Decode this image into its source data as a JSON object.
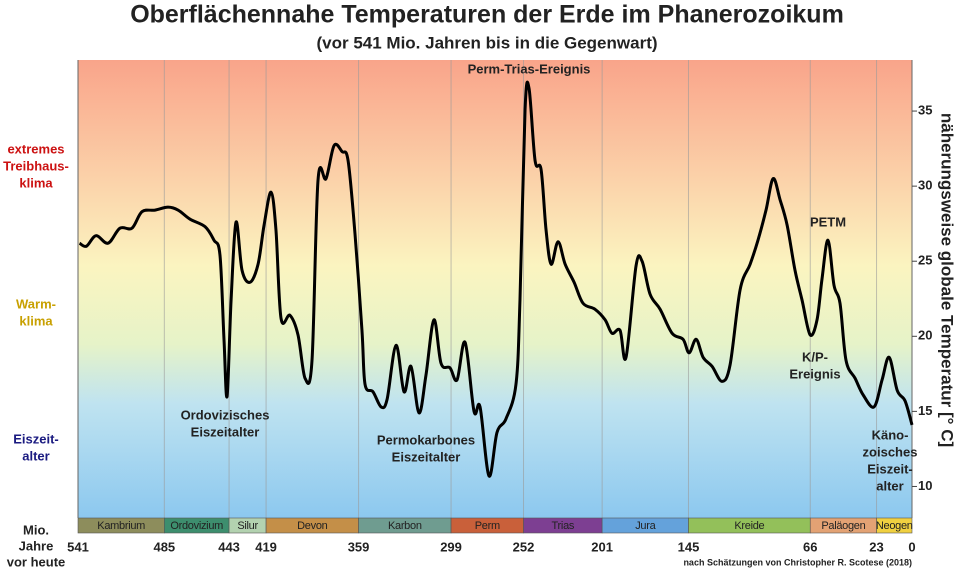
{
  "chart_data": {
    "type": "line",
    "title": "Oberflächennahe Temperaturen der Erde im Phanerozoikum",
    "subtitle": "(vor 541 Mio. Jahren bis in die Gegenwart)",
    "y_label": "näherungsweise  globale  Temperatur [° C]",
    "x_label": [
      "Mio.",
      "Jahre",
      "vor heute"
    ],
    "source": "nach Schätzungen von Christopher R. Scotese (2018)",
    "xlim": [
      541,
      0
    ],
    "ylim": [
      7.9,
      38.4
    ],
    "xticks": [
      541,
      485,
      443,
      419,
      359,
      299,
      252,
      201,
      145,
      66,
      23,
      0
    ],
    "yticks": [
      10,
      15,
      20,
      25,
      30,
      35
    ],
    "grid": true,
    "periods": [
      {
        "name": "Kambrium",
        "color": "#8d8d5c"
      },
      {
        "name": "Ordovizium",
        "color": "#3d8e6e"
      },
      {
        "name": "Silur",
        "color": "#b3d2b0"
      },
      {
        "name": "Devon",
        "color": "#c48f48"
      },
      {
        "name": "Karbon",
        "color": "#6f9c90"
      },
      {
        "name": "Perm",
        "color": "#c9603a"
      },
      {
        "name": "Trias",
        "color": "#7d3f92"
      },
      {
        "name": "Jura",
        "color": "#64a2db"
      },
      {
        "name": "Kreide",
        "color": "#93c05a"
      },
      {
        "name": "Paläogen",
        "color": "#e3a274"
      },
      {
        "name": "Neogen",
        "color": "#f0d040"
      }
    ],
    "climate_zones": [
      {
        "lines": [
          "extremes",
          "Treibhaus-",
          "klima"
        ],
        "color": "#cc1111"
      },
      {
        "lines": [
          "Warm-",
          "klima"
        ],
        "color": "#c8a000"
      },
      {
        "lines": [
          "Eiszeit-",
          "alter"
        ],
        "color": "#1a1a80"
      }
    ],
    "annotations": [
      [
        "Perm-Trias-Ereignis"
      ],
      [
        "Ordovizisches",
        "Eiszeitalter"
      ],
      [
        "Permokarbones",
        "Eiszeitalter"
      ],
      [
        "PETM"
      ],
      [
        "K/P-",
        "Ereignis"
      ],
      [
        "Käno-",
        "zoisches",
        "Eiszeit-",
        "alter"
      ]
    ],
    "series": [
      {
        "color": "#000000",
        "x": [
          540,
          535.5,
          529.3,
          521.5,
          513.8,
          506,
          499.5,
          491,
          482.6,
          476,
          468.3,
          458.6,
          452.8,
          448.9,
          446.3,
          444.3,
          441.7,
          438.5,
          434.6,
          429.4,
          424.2,
          420.3,
          415.8,
          412.6,
          409.3,
          403.5,
          398.3,
          393.7,
          389.2,
          385.3,
          380.1,
          374.9,
          369.7,
          365.8,
          361.3,
          356.8,
          354.8,
          349.6,
          344.4,
          340.5,
          334.7,
          329.5,
          325,
          319.8,
          315.3,
          310.1,
          305.5,
          299.7,
          295.1,
          289.9,
          284.1,
          280.2,
          274.4,
          269.2,
          263.4,
          256.9,
          254.3,
          251,
          248.4,
          244.5,
          240.6,
          237.4,
          234.1,
          229.6,
          225,
          219.2,
          213.4,
          205.6,
          199.1,
          194.6,
          189.4,
          185.5,
          179,
          175.1,
          169.9,
          163.4,
          155.6,
          148.5,
          144.6,
          140,
          135.5,
          129.7,
          123.2,
          118,
          111.5,
          105,
          99.9,
          94.7,
          90.1,
          85.6,
          81,
          75.9,
          71.3,
          66.1,
          61.6,
          58.4,
          54.5,
          50.6,
          46.7,
          42.8,
          36.9,
          31.7,
          24.6,
          19.4,
          14.8,
          9.6,
          4.5,
          0
        ],
        "values": [
          26.2,
          26.0,
          26.7,
          26.2,
          27.2,
          27.2,
          28.3,
          28.4,
          28.6,
          28.4,
          27.8,
          27.3,
          26.4,
          25.4,
          19.8,
          16.0,
          22.4,
          27.6,
          24.4,
          23.6,
          24.8,
          27.4,
          29.6,
          27.1,
          21.2,
          21.4,
          20.1,
          17.2,
          18.4,
          30.4,
          30.5,
          32.7,
          32.3,
          31.7,
          26.8,
          20.4,
          16.8,
          16.3,
          15.3,
          15.8,
          19.4,
          16.3,
          18.0,
          14.9,
          17.4,
          21.1,
          18.2,
          17.9,
          17.1,
          19.6,
          15.0,
          15.3,
          10.7,
          13.6,
          14.5,
          16.8,
          22.4,
          35.1,
          36.5,
          31.7,
          31.1,
          27.1,
          24.8,
          26.3,
          24.8,
          23.6,
          22.2,
          21.8,
          21.1,
          20.2,
          20.4,
          18.6,
          24.7,
          25.0,
          22.8,
          21.8,
          20.2,
          19.8,
          18.9,
          19.8,
          18.6,
          18.0,
          17.0,
          18.1,
          23.1,
          24.8,
          26.4,
          28.4,
          30.5,
          29.1,
          27.4,
          24.4,
          22.4,
          20.1,
          21.1,
          23.8,
          26.4,
          23.4,
          22.2,
          18.4,
          17.2,
          16.1,
          15.3,
          17.1,
          18.6,
          16.4,
          15.7,
          14.1
        ]
      }
    ]
  }
}
